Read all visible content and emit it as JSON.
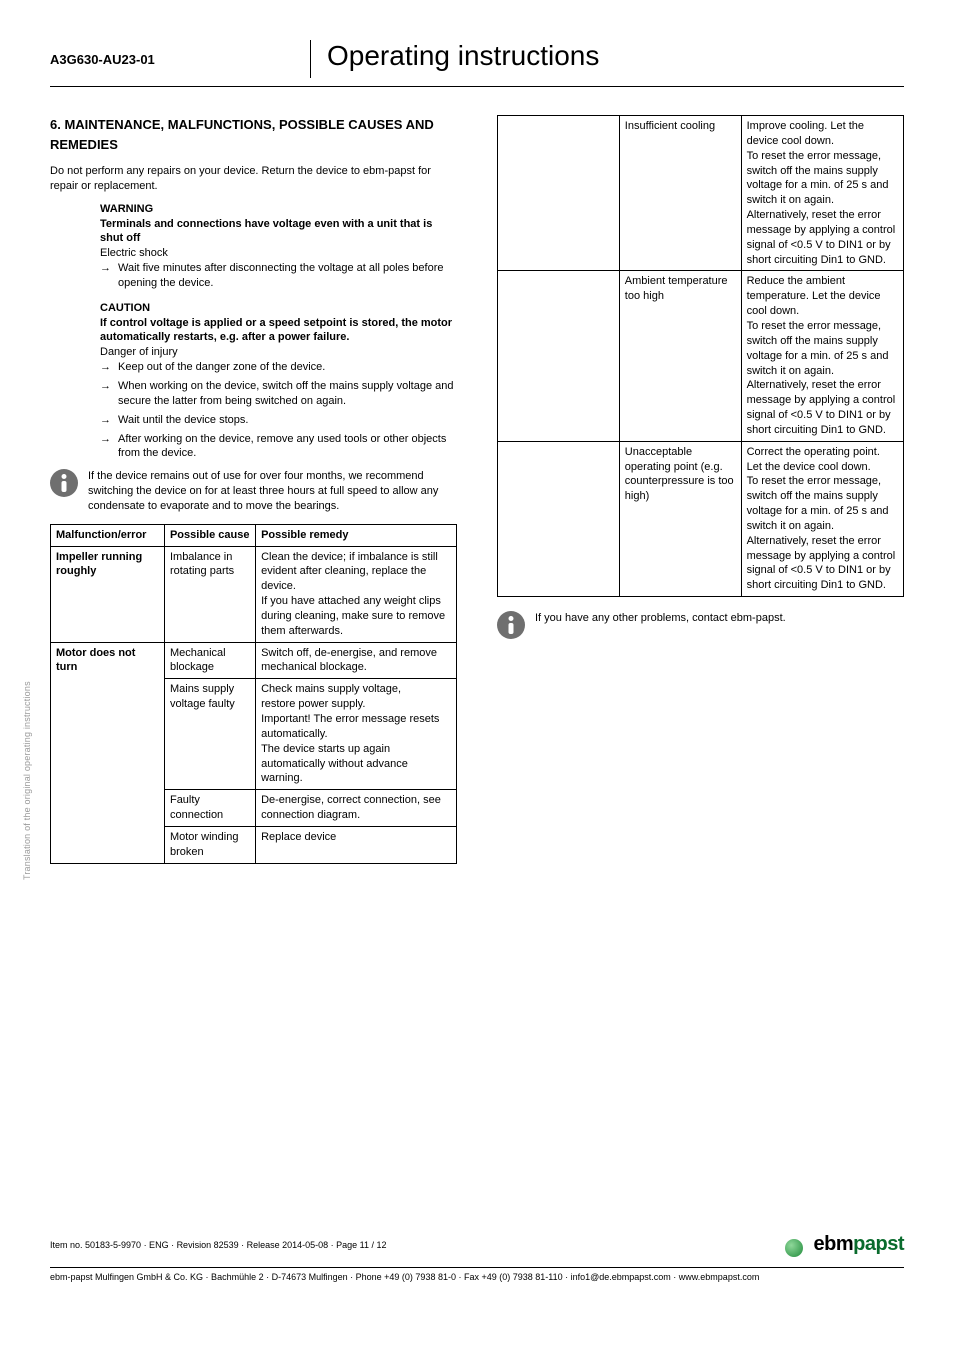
{
  "header": {
    "model": "A3G630-AU23-01",
    "doc_title": "Operating instructions"
  },
  "section": {
    "heading": "6. MAINTENANCE, MALFUNCTIONS, POSSIBLE CAUSES AND REMEDIES",
    "intro": "Do not perform any repairs on your device. Return the device to ebm-papst for repair or replacement.",
    "warning_label": "WARNING",
    "warning_bold": "Terminals and connections have voltage even with a unit that is shut off",
    "warning_plain": "Electric shock",
    "warning_arrow": "Wait five minutes after disconnecting the voltage at all poles before opening the device.",
    "caution_label": "CAUTION",
    "caution_bold": "If control voltage is applied or a speed setpoint is stored, the motor automatically restarts, e.g. after a power failure.",
    "caution_plain": "Danger of injury",
    "caution_arrows": [
      "Keep out of the danger zone of the device.",
      "When working on the device, switch off the mains supply voltage and secure the latter from being switched on again.",
      "Wait until the device stops.",
      "After working on the device, remove any used tools or other objects from the device."
    ],
    "info1": "If the device remains out of use for over four months, we recommend switching the device on for at least three hours at full speed to allow any condensate to evaporate and to move the bearings.",
    "info2": "If you have any other problems, contact ebm-papst."
  },
  "table_left": {
    "headers": [
      "Malfunction/error",
      "Possible cause",
      "Possible remedy"
    ],
    "rows": [
      {
        "mal": "Impeller running roughly",
        "cause": "Imbalance in rotating parts",
        "remedy": "Clean the device; if imbalance is still evident after cleaning, replace the device.\nIf you have attached any weight clips during cleaning, make sure to remove them afterwards."
      },
      {
        "mal": "Motor does not turn",
        "cause": "Mechanical blockage",
        "remedy": "Switch off, de-energise, and remove mechanical blockage."
      },
      {
        "mal": "",
        "cause": "Mains supply voltage faulty",
        "remedy": "Check mains supply voltage,\nrestore power supply.\nImportant! The error message resets automatically.\nThe device starts up again automatically without advance warning."
      },
      {
        "mal": "",
        "cause": "Faulty connection",
        "remedy": "De-energise, correct connection, see connection diagram."
      },
      {
        "mal": "",
        "cause": "Motor winding broken",
        "remedy": "Replace device"
      }
    ]
  },
  "table_right": {
    "rows": [
      {
        "mal": "",
        "cause": "Insufficient cooling",
        "remedy": "Improve cooling. Let the device cool down.\nTo reset the error message, switch off the mains supply voltage for a min. of 25 s and switch it on again.\nAlternatively, reset the error message by applying a control signal of <0.5 V to DIN1 or by short circuiting Din1 to GND."
      },
      {
        "mal": "",
        "cause": "Ambient temperature too high",
        "remedy": "Reduce the ambient temperature. Let the device cool down.\nTo reset the error message, switch off the mains supply voltage for a min. of 25 s and switch it on again.\nAlternatively, reset the error message by applying a control signal of <0.5 V to DIN1 or by short circuiting Din1 to GND."
      },
      {
        "mal": "",
        "cause": "Unacceptable operating point (e.g. counterpressure is too high)",
        "remedy": "Correct the operating point. Let the device cool down.\nTo reset the error message, switch off the mains supply voltage for a min. of 25 s and switch it on again.\nAlternatively, reset the error message by applying a control signal of <0.5 V to DIN1 or by short circuiting Din1 to GND."
      }
    ]
  },
  "side_label": "Translation of the original operating instructions",
  "footer": {
    "item_line": "Item no. 50183-5-9970 · ENG · Revision 82539 · Release 2014-05-08 · Page 11 / 12",
    "brand_ebm": "ebm",
    "brand_papst": "papst",
    "address": "ebm-papst Mulfingen GmbH & Co. KG · Bachmühle 2 · D-74673 Mulfingen · Phone +49 (0) 7938 81-0 · Fax +49 (0) 7938 81-110 · info1@de.ebmpapst.com · www.ebmpapst.com"
  },
  "colors": {
    "text": "#000000",
    "bg": "#ffffff",
    "icon_gray": "#6f6f6f",
    "brand_green": "#0a6b2d",
    "side_gray": "#9a9a9a"
  }
}
